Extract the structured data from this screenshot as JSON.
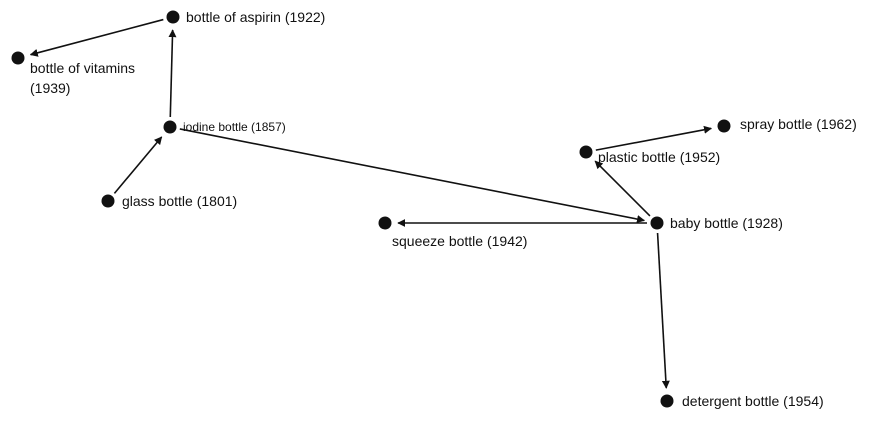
{
  "nodes": [
    {
      "label": "bottle of aspirin (1922)"
    },
    {
      "label": "bottle of vitamins (1939)"
    },
    {
      "label": "iodine bottle (1857)"
    },
    {
      "label": "glass bottle (1801)"
    },
    {
      "label": "baby bottle (1928)"
    },
    {
      "label": "squeeze bottle (1942)"
    },
    {
      "label": "plastic bottle (1952)"
    },
    {
      "label": "spray bottle (1962)"
    },
    {
      "label": "detergent bottle (1954)"
    }
  ],
  "edges": [
    {
      "from": 0,
      "to": 1
    },
    {
      "from": 2,
      "to": 0
    },
    {
      "from": 3,
      "to": 2
    },
    {
      "from": 2,
      "to": 4
    },
    {
      "from": 4,
      "to": 5
    },
    {
      "from": 4,
      "to": 6
    },
    {
      "from": 6,
      "to": 7
    },
    {
      "from": 4,
      "to": 8
    }
  ]
}
